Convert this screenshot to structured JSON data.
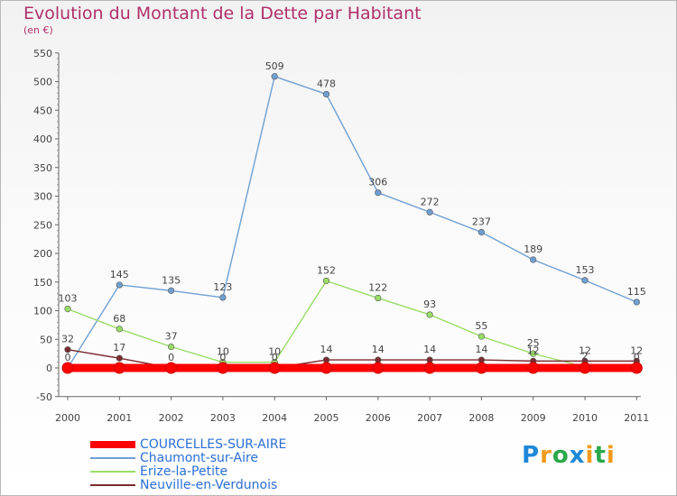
{
  "header": {
    "title": "Evolution du Montant de la Dette par Habitant",
    "subtitle": "(en €)"
  },
  "logo": {
    "text": "Proxiti",
    "letters": [
      {
        "ch": "P",
        "color": "#1e88d8"
      },
      {
        "ch": "r",
        "color": "#f29a1c"
      },
      {
        "ch": "o",
        "color": "#2aa84a"
      },
      {
        "ch": "x",
        "color": "#1e88d8"
      },
      {
        "ch": "i",
        "color": "#f29a1c"
      },
      {
        "ch": "t",
        "color": "#2aa84a"
      },
      {
        "ch": "i",
        "color": "#f29a1c"
      }
    ]
  },
  "chart_data": {
    "type": "line",
    "title": "Evolution du Montant de la Dette par Habitant",
    "subtitle": "(en €)",
    "xlabel": "",
    "ylabel": "",
    "x": [
      "2000",
      "2001",
      "2002",
      "2003",
      "2004",
      "2005",
      "2006",
      "2007",
      "2008",
      "2009",
      "2010",
      "2011"
    ],
    "ylim": [
      -50,
      550
    ],
    "yticks": [
      "-50",
      "0",
      "50",
      "100",
      "150",
      "200",
      "250",
      "300",
      "350",
      "400",
      "450",
      "500",
      "550"
    ],
    "grid": false,
    "legend_position": "bottom-left",
    "series": [
      {
        "name": "COURCELLES-SUR-AIRE",
        "color": "#ff0000",
        "values": [
          0,
          0,
          0,
          0,
          0,
          0,
          0,
          0,
          0,
          0,
          0,
          0
        ],
        "labels": [],
        "label_y": []
      },
      {
        "name": "Chaumont-sur-Aire",
        "color": "#6fa0d2",
        "values": [
          0,
          145,
          135,
          123,
          509,
          478,
          306,
          272,
          237,
          189,
          153,
          115
        ],
        "labels": [
          "0",
          "145",
          "135",
          "123",
          "509",
          "478",
          "306",
          "272",
          "237",
          "189",
          "153",
          "115"
        ],
        "label_y": [
          0,
          145,
          135,
          123,
          509,
          478,
          306,
          272,
          237,
          189,
          153,
          115
        ]
      },
      {
        "name": "Erize-la-Petite",
        "color": "#99dd66",
        "values": [
          103,
          68,
          37,
          10,
          10,
          152,
          122,
          93,
          55,
          25,
          2,
          0
        ],
        "labels": [
          "103",
          "68",
          "37",
          "10",
          "10",
          "152",
          "122",
          "93",
          "55",
          "25",
          "2",
          "0"
        ],
        "label_y": [
          103,
          68,
          37,
          10,
          10,
          152,
          122,
          93,
          55,
          25,
          2,
          0
        ]
      },
      {
        "name": "Neuville-en-Verdunois",
        "color": "#7a2a30",
        "values": [
          32,
          17,
          0,
          0,
          0,
          14,
          14,
          14,
          14,
          12,
          12,
          12
        ],
        "labels": [
          "32",
          "17",
          "0",
          "0",
          "0",
          "14",
          "14",
          "14",
          "14",
          "12",
          "12",
          "12"
        ],
        "label_y": [
          32,
          17,
          0,
          0,
          0,
          14,
          14,
          14,
          14,
          12,
          12,
          12
        ]
      }
    ]
  }
}
